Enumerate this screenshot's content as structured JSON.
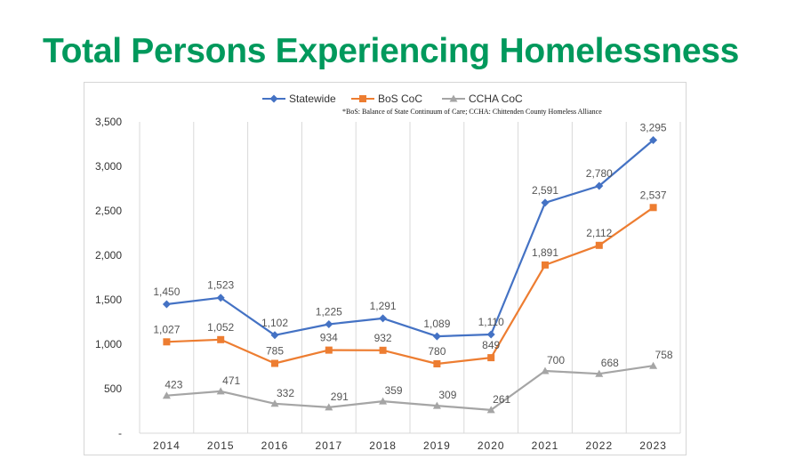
{
  "page": {
    "title": "Total Persons Experiencing Homelessness"
  },
  "chart_data": {
    "type": "line",
    "x": [
      "2014",
      "2015",
      "2016",
      "2017",
      "2018",
      "2019",
      "2020",
      "2021",
      "2022",
      "2023"
    ],
    "series": [
      {
        "name": "Statewide",
        "color": "#4472c4",
        "marker": "diamond",
        "values": [
          1450,
          1523,
          1102,
          1225,
          1291,
          1089,
          1110,
          2591,
          2780,
          3295
        ],
        "labels": [
          "1,450",
          "1,523",
          "1,102",
          "1,225",
          "1,291",
          "1,089",
          "1,110",
          "2,591",
          "2,780",
          "3,295"
        ]
      },
      {
        "name": "BoS CoC",
        "color": "#ed7d31",
        "marker": "square",
        "values": [
          1027,
          1052,
          785,
          934,
          932,
          780,
          849,
          1891,
          2112,
          2537
        ],
        "labels": [
          "1,027",
          "1,052",
          "785",
          "934",
          "932",
          "780",
          "849",
          "1,891",
          "2,112",
          "2,537"
        ]
      },
      {
        "name": "CCHA CoC",
        "color": "#a5a5a5",
        "marker": "triangle",
        "values": [
          423,
          471,
          332,
          291,
          359,
          309,
          261,
          700,
          668,
          758
        ],
        "labels": [
          "423",
          "471",
          "332",
          "291",
          "359",
          "309",
          "261",
          "700",
          "668",
          "758"
        ]
      }
    ],
    "ylim": [
      0,
      3500
    ],
    "yticks": [
      0,
      500,
      1000,
      1500,
      2000,
      2500,
      3000,
      3500
    ],
    "ytick_labels": [
      "-",
      "500",
      "1,000",
      "1,500",
      "2,000",
      "2,500",
      "3,000",
      "3,500"
    ],
    "grid": "vertical",
    "legend": "top",
    "annotation": "*BoS: Balance of State Continuum of Care; CCHA: Chittenden County Homeless Alliance"
  }
}
